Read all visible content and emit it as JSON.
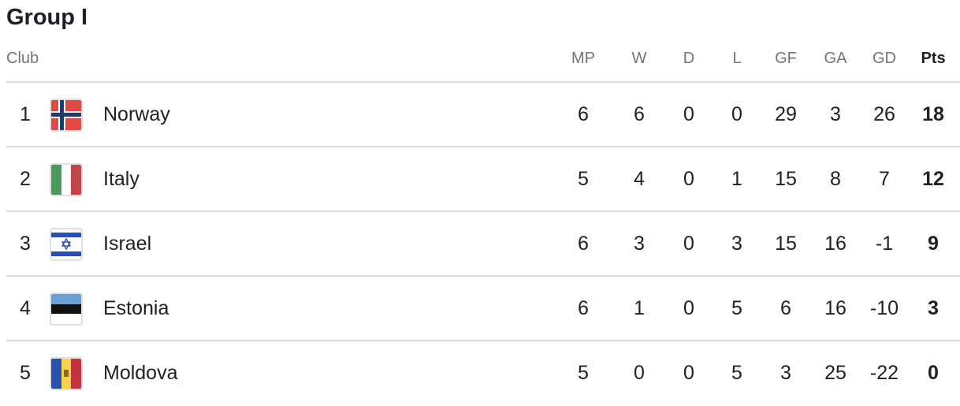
{
  "title": "Group I",
  "headers": {
    "club": "Club",
    "mp": "MP",
    "w": "W",
    "d": "D",
    "l": "L",
    "gf": "GF",
    "ga": "GA",
    "gd": "GD",
    "pts": "Pts"
  },
  "rows": [
    {
      "rank": "1",
      "team": "Norway",
      "flag": "norway-flag",
      "mp": "6",
      "w": "6",
      "d": "0",
      "l": "0",
      "gf": "29",
      "ga": "3",
      "gd": "26",
      "pts": "18"
    },
    {
      "rank": "2",
      "team": "Italy",
      "flag": "italy-flag",
      "mp": "5",
      "w": "4",
      "d": "0",
      "l": "1",
      "gf": "15",
      "ga": "8",
      "gd": "7",
      "pts": "12"
    },
    {
      "rank": "3",
      "team": "Israel",
      "flag": "israel-flag",
      "mp": "6",
      "w": "3",
      "d": "0",
      "l": "3",
      "gf": "15",
      "ga": "16",
      "gd": "-1",
      "pts": "9"
    },
    {
      "rank": "4",
      "team": "Estonia",
      "flag": "estonia-flag",
      "mp": "6",
      "w": "1",
      "d": "0",
      "l": "5",
      "gf": "6",
      "ga": "16",
      "gd": "-10",
      "pts": "3"
    },
    {
      "rank": "5",
      "team": "Moldova",
      "flag": "moldova-flag",
      "mp": "5",
      "w": "0",
      "d": "0",
      "l": "5",
      "gf": "3",
      "ga": "25",
      "gd": "-22",
      "pts": "0"
    }
  ]
}
